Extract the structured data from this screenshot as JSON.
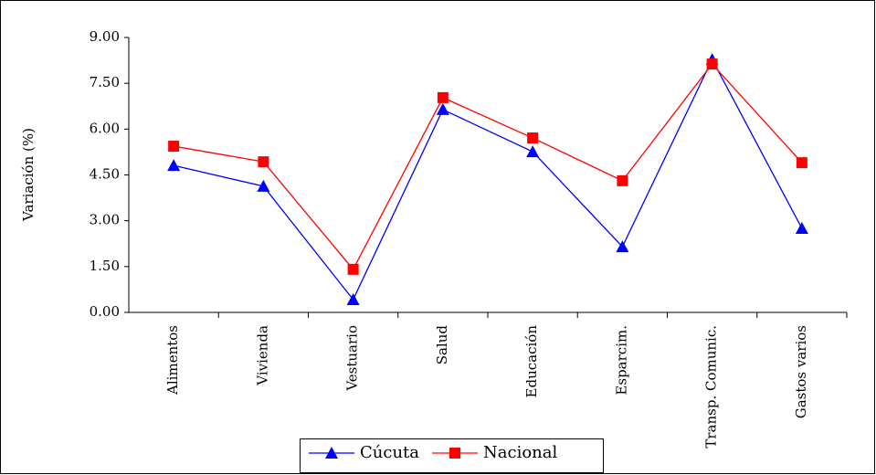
{
  "chart_data": {
    "type": "line",
    "y_label": "Variación (%)",
    "categories": [
      "Alimentos",
      "Vivienda",
      "Vestuario",
      "Salud",
      "Educación",
      "Esparcim.",
      "Transp. Comunic.",
      "Gastos varios"
    ],
    "series": [
      {
        "name": "Cúcuta",
        "color": "#0000ff",
        "marker": "triangle",
        "values": [
          4.81,
          4.13,
          0.42,
          6.64,
          5.26,
          2.15,
          8.28,
          2.75
        ]
      },
      {
        "name": "Nacional",
        "color": "#ff0000",
        "marker": "square",
        "values": [
          5.44,
          4.93,
          1.41,
          7.03,
          5.71,
          4.31,
          8.13,
          4.9
        ]
      }
    ],
    "ylim": [
      0,
      9
    ],
    "yticks": [
      {
        "value": 0,
        "label": "0.00"
      },
      {
        "value": 1.5,
        "label": "1.50"
      },
      {
        "value": 3,
        "label": "3.00"
      },
      {
        "value": 4.5,
        "label": "4.50"
      },
      {
        "value": 6,
        "label": "6.00"
      },
      {
        "value": 7.5,
        "label": "7.50"
      },
      {
        "value": 9,
        "label": "9.00"
      }
    ],
    "grid": false,
    "legend": "bottom"
  }
}
